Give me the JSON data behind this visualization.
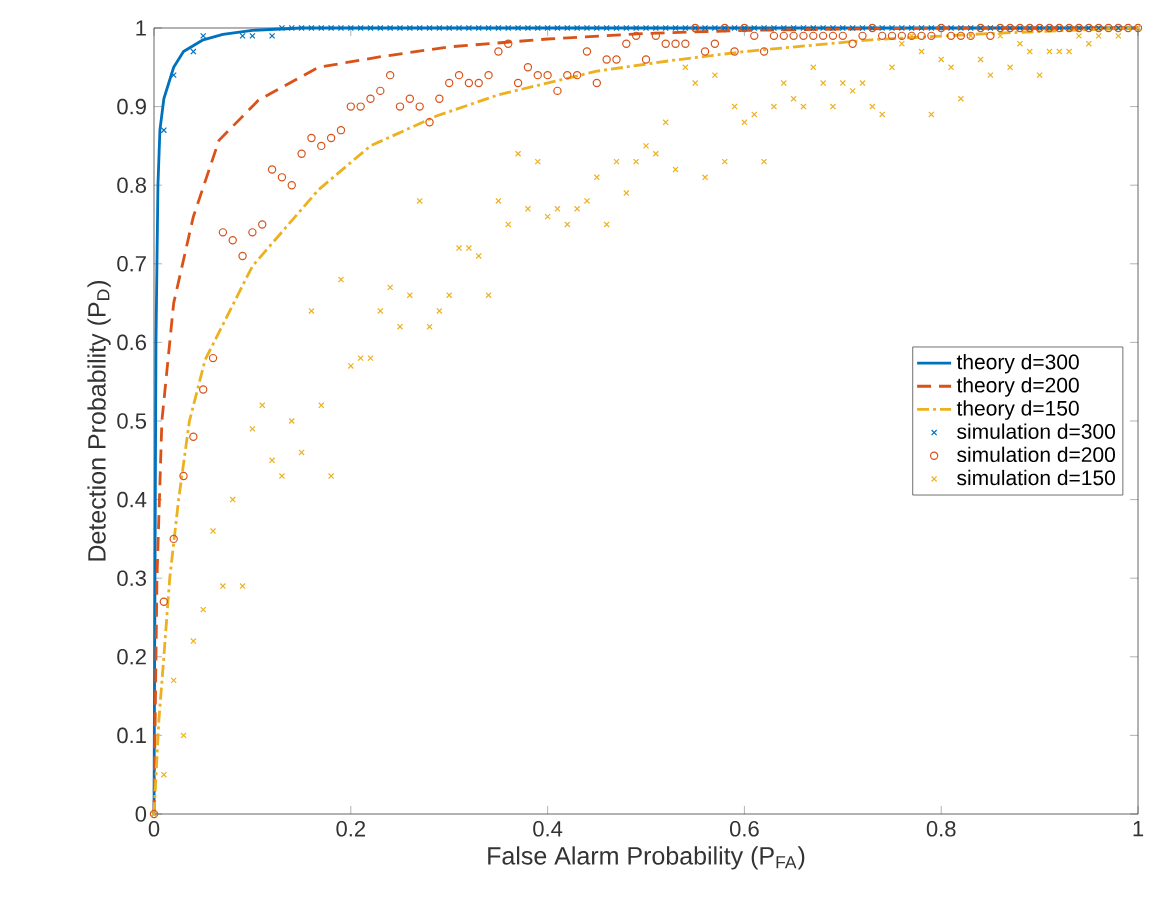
{
  "chart_data": {
    "type": "line",
    "xlabel": "False Alarm Probability (P$_{FA}$)",
    "ylabel": "Detection Probability (P$_{D}$)",
    "xlim": [
      0,
      1
    ],
    "ylim": [
      0,
      1
    ],
    "xticks": [
      0,
      0.2,
      0.4,
      0.6,
      0.8,
      1
    ],
    "yticks": [
      0,
      0.1,
      0.2,
      0.3,
      0.4,
      0.5,
      0.6,
      0.7,
      0.8,
      0.9,
      1
    ],
    "grid": false,
    "legend": "right",
    "series": [
      {
        "name": "theory d=300",
        "line_style": "solid",
        "color": "#0072bd",
        "x": [
          0,
          0.002,
          0.004,
          0.006,
          0.01,
          0.02,
          0.03,
          0.05,
          0.07,
          0.1,
          0.15,
          1
        ],
        "values": [
          0,
          0.6,
          0.8,
          0.87,
          0.91,
          0.95,
          0.97,
          0.985,
          0.992,
          0.997,
          1,
          1
        ]
      },
      {
        "name": "theory d=200",
        "line_style": "dashed",
        "color": "#d95319",
        "x": [
          0,
          0.003,
          0.008,
          0.02,
          0.04,
          0.066,
          0.106,
          0.167,
          0.233,
          0.3,
          0.4,
          0.5,
          0.6,
          0.8,
          1
        ],
        "values": [
          0,
          0.3,
          0.5,
          0.65,
          0.76,
          0.857,
          0.908,
          0.95,
          0.964,
          0.976,
          0.986,
          0.993,
          0.997,
          1,
          1
        ]
      },
      {
        "name": "theory d=150",
        "line_style": "dashdot",
        "color": "#edb120",
        "x": [
          0,
          0.005,
          0.01,
          0.016,
          0.025,
          0.036,
          0.052,
          0.1,
          0.167,
          0.22,
          0.287,
          0.35,
          0.45,
          0.528,
          0.6,
          0.729,
          0.85,
          0.93,
          1
        ],
        "values": [
          0,
          0.12,
          0.2,
          0.3,
          0.4,
          0.5,
          0.578,
          0.697,
          0.794,
          0.85,
          0.888,
          0.915,
          0.945,
          0.959,
          0.97,
          0.985,
          0.993,
          0.997,
          1
        ]
      },
      {
        "name": "simulation d=300",
        "type": "scatter",
        "marker": "cross",
        "color": "#0072bd",
        "x": [
          0,
          0.01,
          0.02,
          0.04,
          0.05,
          0.09,
          0.1,
          0.12,
          0.13,
          0.14,
          0.15,
          0.16,
          0.17,
          0.18,
          0.19,
          0.2,
          0.21,
          0.22,
          0.23,
          0.24,
          0.25,
          0.26,
          0.27,
          0.28,
          0.29,
          0.3,
          0.31,
          0.32,
          0.33,
          0.34,
          0.35,
          0.36,
          0.37,
          0.38,
          0.39,
          0.4,
          0.41,
          0.42,
          0.43,
          0.44,
          0.45,
          0.46,
          0.47,
          0.48,
          0.49,
          0.5,
          0.51,
          0.52,
          0.53,
          0.54,
          0.55,
          0.56,
          0.57,
          0.58,
          0.59,
          0.6,
          0.61,
          0.62,
          0.63,
          0.64,
          0.65,
          0.66,
          0.67,
          0.68,
          0.69,
          0.7,
          0.71,
          0.72,
          0.73,
          0.74,
          0.75,
          0.76,
          0.77,
          0.78,
          0.79,
          0.8,
          0.81,
          0.82,
          0.83,
          0.84,
          0.85,
          0.86,
          0.87,
          0.88,
          0.89,
          0.9,
          0.91,
          0.92,
          0.93,
          0.94,
          0.95,
          0.96,
          0.97,
          0.98,
          0.99,
          1
        ],
        "values": [
          0,
          0.87,
          0.94,
          0.97,
          0.99,
          0.99,
          0.99,
          0.99,
          1,
          1,
          1,
          1,
          1,
          1,
          1,
          1,
          1,
          1,
          1,
          1,
          1,
          1,
          1,
          1,
          1,
          1,
          1,
          1,
          1,
          1,
          1,
          1,
          1,
          1,
          1,
          1,
          1,
          1,
          1,
          1,
          1,
          1,
          1,
          1,
          1,
          1,
          1,
          1,
          1,
          1,
          1,
          1,
          1,
          1,
          1,
          1,
          1,
          1,
          1,
          1,
          1,
          1,
          1,
          1,
          1,
          1,
          1,
          1,
          1,
          1,
          1,
          1,
          1,
          1,
          1,
          1,
          1,
          1,
          1,
          1,
          1,
          1,
          1,
          1,
          1,
          1,
          1,
          1,
          1,
          1,
          1,
          1,
          1,
          1,
          1,
          1
        ]
      },
      {
        "name": "simulation d=200",
        "type": "scatter",
        "marker": "circle",
        "color": "#d95319",
        "x": [
          0,
          0.01,
          0.02,
          0.03,
          0.04,
          0.05,
          0.06,
          0.07,
          0.08,
          0.09,
          0.1,
          0.11,
          0.12,
          0.13,
          0.14,
          0.15,
          0.16,
          0.17,
          0.18,
          0.19,
          0.2,
          0.21,
          0.22,
          0.23,
          0.24,
          0.25,
          0.26,
          0.27,
          0.28,
          0.29,
          0.3,
          0.31,
          0.32,
          0.33,
          0.34,
          0.35,
          0.36,
          0.37,
          0.38,
          0.39,
          0.4,
          0.41,
          0.42,
          0.43,
          0.44,
          0.45,
          0.46,
          0.47,
          0.48,
          0.49,
          0.5,
          0.51,
          0.52,
          0.53,
          0.54,
          0.55,
          0.56,
          0.57,
          0.58,
          0.59,
          0.6,
          0.61,
          0.62,
          0.63,
          0.64,
          0.65,
          0.66,
          0.67,
          0.68,
          0.69,
          0.7,
          0.71,
          0.72,
          0.73,
          0.74,
          0.75,
          0.76,
          0.77,
          0.78,
          0.79,
          0.8,
          0.81,
          0.82,
          0.83,
          0.84,
          0.85,
          0.86,
          0.87,
          0.88,
          0.89,
          0.9,
          0.91,
          0.92,
          0.93,
          0.94,
          0.95,
          0.96,
          0.97,
          0.98,
          0.99,
          1
        ],
        "values": [
          0,
          0.27,
          0.35,
          0.43,
          0.48,
          0.54,
          0.58,
          0.74,
          0.73,
          0.71,
          0.74,
          0.75,
          0.82,
          0.81,
          0.8,
          0.84,
          0.86,
          0.85,
          0.86,
          0.87,
          0.9,
          0.9,
          0.91,
          0.92,
          0.94,
          0.9,
          0.91,
          0.9,
          0.88,
          0.91,
          0.93,
          0.94,
          0.93,
          0.93,
          0.94,
          0.97,
          0.98,
          0.93,
          0.95,
          0.94,
          0.94,
          0.92,
          0.94,
          0.94,
          0.97,
          0.93,
          0.96,
          0.96,
          0.98,
          0.99,
          0.96,
          0.99,
          0.98,
          0.98,
          0.98,
          1,
          0.97,
          0.98,
          1,
          0.97,
          1,
          0.99,
          0.97,
          0.99,
          0.99,
          0.99,
          0.99,
          0.99,
          0.99,
          0.99,
          0.99,
          0.98,
          0.99,
          1,
          0.99,
          0.99,
          0.99,
          0.99,
          0.99,
          0.99,
          1,
          0.99,
          0.99,
          0.99,
          1,
          0.99,
          1,
          1,
          1,
          1,
          1,
          1,
          1,
          1,
          1,
          1,
          1,
          1,
          1,
          1,
          1
        ]
      },
      {
        "name": "simulation d=150",
        "type": "scatter",
        "marker": "cross",
        "color": "#edb120",
        "x": [
          0,
          0.01,
          0.02,
          0.03,
          0.04,
          0.05,
          0.06,
          0.07,
          0.08,
          0.09,
          0.1,
          0.11,
          0.12,
          0.13,
          0.14,
          0.15,
          0.16,
          0.17,
          0.18,
          0.19,
          0.2,
          0.21,
          0.22,
          0.23,
          0.24,
          0.25,
          0.26,
          0.27,
          0.28,
          0.29,
          0.3,
          0.31,
          0.32,
          0.33,
          0.34,
          0.35,
          0.36,
          0.37,
          0.38,
          0.39,
          0.4,
          0.41,
          0.42,
          0.43,
          0.44,
          0.45,
          0.46,
          0.47,
          0.48,
          0.49,
          0.5,
          0.51,
          0.52,
          0.53,
          0.54,
          0.55,
          0.56,
          0.57,
          0.58,
          0.59,
          0.6,
          0.61,
          0.62,
          0.63,
          0.64,
          0.65,
          0.66,
          0.67,
          0.68,
          0.69,
          0.7,
          0.71,
          0.72,
          0.73,
          0.74,
          0.75,
          0.76,
          0.77,
          0.78,
          0.79,
          0.8,
          0.81,
          0.82,
          0.83,
          0.84,
          0.85,
          0.86,
          0.87,
          0.88,
          0.89,
          0.9,
          0.91,
          0.92,
          0.93,
          0.94,
          0.95,
          0.96,
          0.97,
          0.98,
          0.99,
          1
        ],
        "values": [
          0,
          0.05,
          0.17,
          0.1,
          0.22,
          0.26,
          0.36,
          0.29,
          0.4,
          0.29,
          0.49,
          0.52,
          0.45,
          0.43,
          0.5,
          0.46,
          0.64,
          0.52,
          0.43,
          0.68,
          0.57,
          0.58,
          0.58,
          0.64,
          0.67,
          0.62,
          0.66,
          0.78,
          0.62,
          0.64,
          0.66,
          0.72,
          0.72,
          0.71,
          0.66,
          0.78,
          0.75,
          0.84,
          0.77,
          0.83,
          0.76,
          0.77,
          0.75,
          0.77,
          0.78,
          0.81,
          0.75,
          0.83,
          0.79,
          0.83,
          0.85,
          0.84,
          0.88,
          0.82,
          0.95,
          0.93,
          0.81,
          0.94,
          0.83,
          0.9,
          0.88,
          0.89,
          0.83,
          0.9,
          0.93,
          0.91,
          0.9,
          0.95,
          0.93,
          0.9,
          0.93,
          0.92,
          0.93,
          0.9,
          0.89,
          0.95,
          0.98,
          0.99,
          0.97,
          0.89,
          0.96,
          0.95,
          0.91,
          0.99,
          0.96,
          0.94,
          0.99,
          0.95,
          0.98,
          0.97,
          0.94,
          0.97,
          0.97,
          0.97,
          0.99,
          0.98,
          0.99,
          1,
          0.99,
          1,
          1
        ]
      }
    ]
  }
}
